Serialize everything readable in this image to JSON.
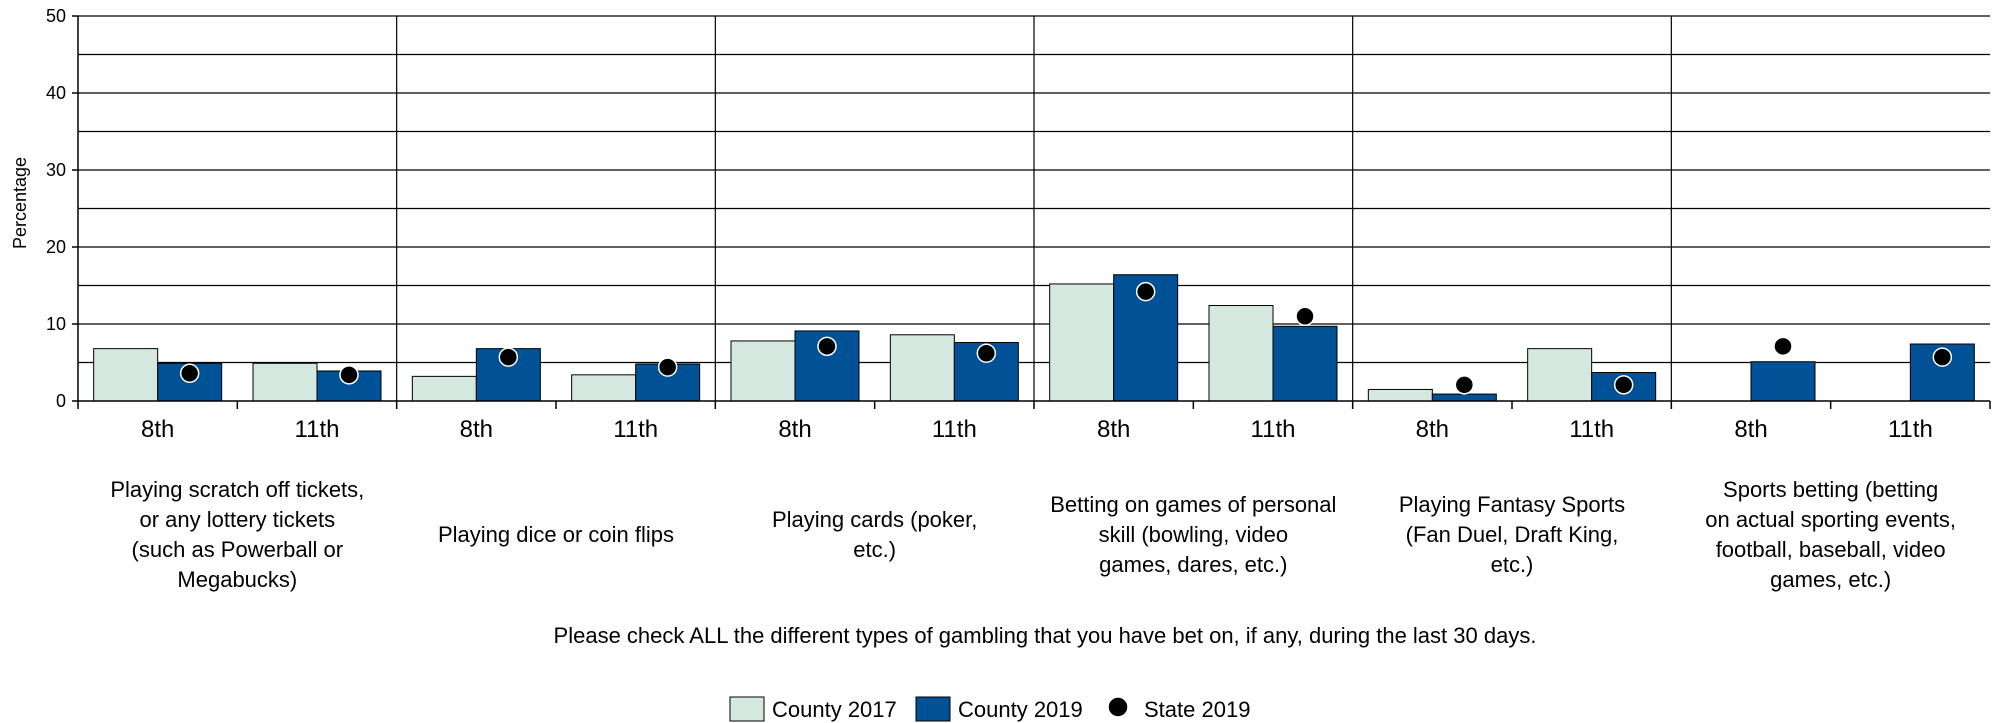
{
  "chart_data": {
    "type": "bar",
    "ylabel": "Percentage",
    "xlabel": "Please check ALL the different types of gambling that you have bet on, if any, during the last 30 days.",
    "ylim": [
      0,
      50
    ],
    "yticks": [
      0,
      10,
      20,
      30,
      40,
      50
    ],
    "grid": true,
    "legend_position": "bottom",
    "groups": [
      {
        "label": "Playing scratch off tickets, or any lottery tickets (such as Powerball or Megabucks)",
        "label_lines": [
          "Playing scratch off tickets,",
          "or any lottery tickets",
          "(such as Powerball or",
          "Megabucks)"
        ]
      },
      {
        "label": "Playing dice or coin flips",
        "label_lines": [
          "Playing dice or coin flips"
        ]
      },
      {
        "label": "Playing cards (poker, etc.)",
        "label_lines": [
          "Playing cards (poker,",
          "etc.)"
        ]
      },
      {
        "label": "Betting on games of personal skill (bowling, video games, dares, etc.)",
        "label_lines": [
          "Betting on games of personal",
          "skill (bowling, video",
          "games, dares, etc.)"
        ]
      },
      {
        "label": "Playing Fantasy Sports (Fan Duel, Draft King, etc.)",
        "label_lines": [
          "Playing Fantasy Sports",
          "(Fan Duel, Draft King,",
          "etc.)"
        ]
      },
      {
        "label": "Sports betting (betting on actual sporting events, football, baseball, video games, etc.)",
        "label_lines": [
          "Sports betting (betting",
          "on actual sporting events,",
          "football, baseball, video",
          "games, etc.)"
        ]
      }
    ],
    "grades": [
      "8th",
      "11th"
    ],
    "series": [
      {
        "name": "County 2017",
        "type": "bar",
        "color": "#d4e8e0",
        "values": [
          [
            6.8,
            4.9
          ],
          [
            3.2,
            3.4
          ],
          [
            7.8,
            8.6
          ],
          [
            15.2,
            12.4
          ],
          [
            1.5,
            6.8
          ],
          [
            0,
            0
          ]
        ]
      },
      {
        "name": "County 2019",
        "type": "bar",
        "color": "#005195",
        "values": [
          [
            4.9,
            3.9
          ],
          [
            6.8,
            4.8
          ],
          [
            9.1,
            7.6
          ],
          [
            16.4,
            9.7
          ],
          [
            0.9,
            3.7
          ],
          [
            5.1,
            7.4
          ]
        ]
      },
      {
        "name": "State 2019",
        "type": "dot",
        "color": "#000000",
        "values": [
          [
            3.6,
            3.4
          ],
          [
            5.7,
            4.4
          ],
          [
            7.1,
            6.2
          ],
          [
            14.2,
            11.0
          ],
          [
            2.1,
            2.1
          ],
          [
            7.1,
            5.7
          ]
        ]
      }
    ]
  }
}
